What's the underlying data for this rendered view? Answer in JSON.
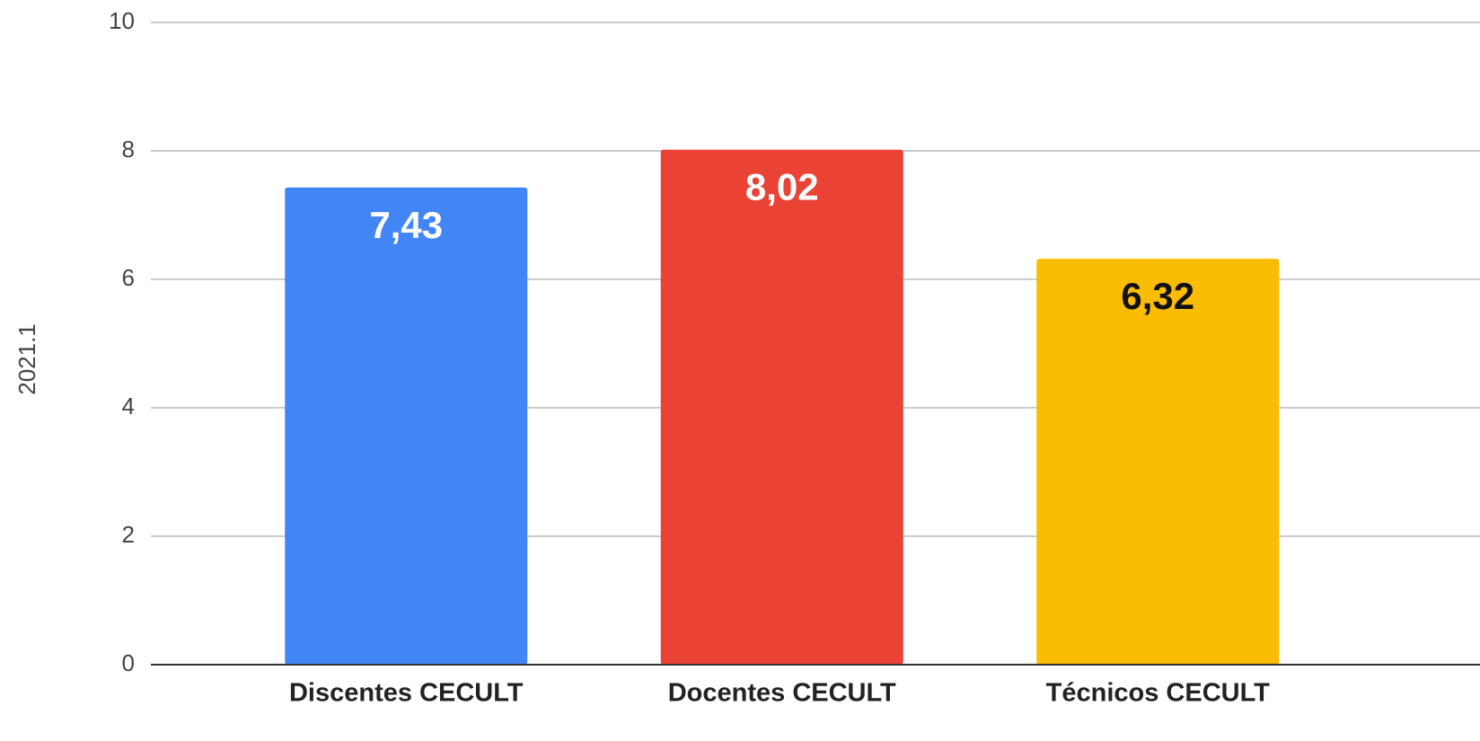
{
  "chart_data": {
    "type": "bar",
    "y_label": "2021.1",
    "categories": [
      "Discentes CECULT",
      "Docentes CECULT",
      "Técnicos CECULT"
    ],
    "values": [
      7.43,
      8.02,
      6.32
    ],
    "value_labels": [
      "7,43",
      "8,02",
      "6,32"
    ],
    "colors": [
      "#4285f4",
      "#ea4335",
      "#fbbc04"
    ],
    "ylim": [
      0,
      10
    ],
    "yticks": [
      0,
      2,
      4,
      6,
      8,
      10
    ],
    "grid": true
  }
}
